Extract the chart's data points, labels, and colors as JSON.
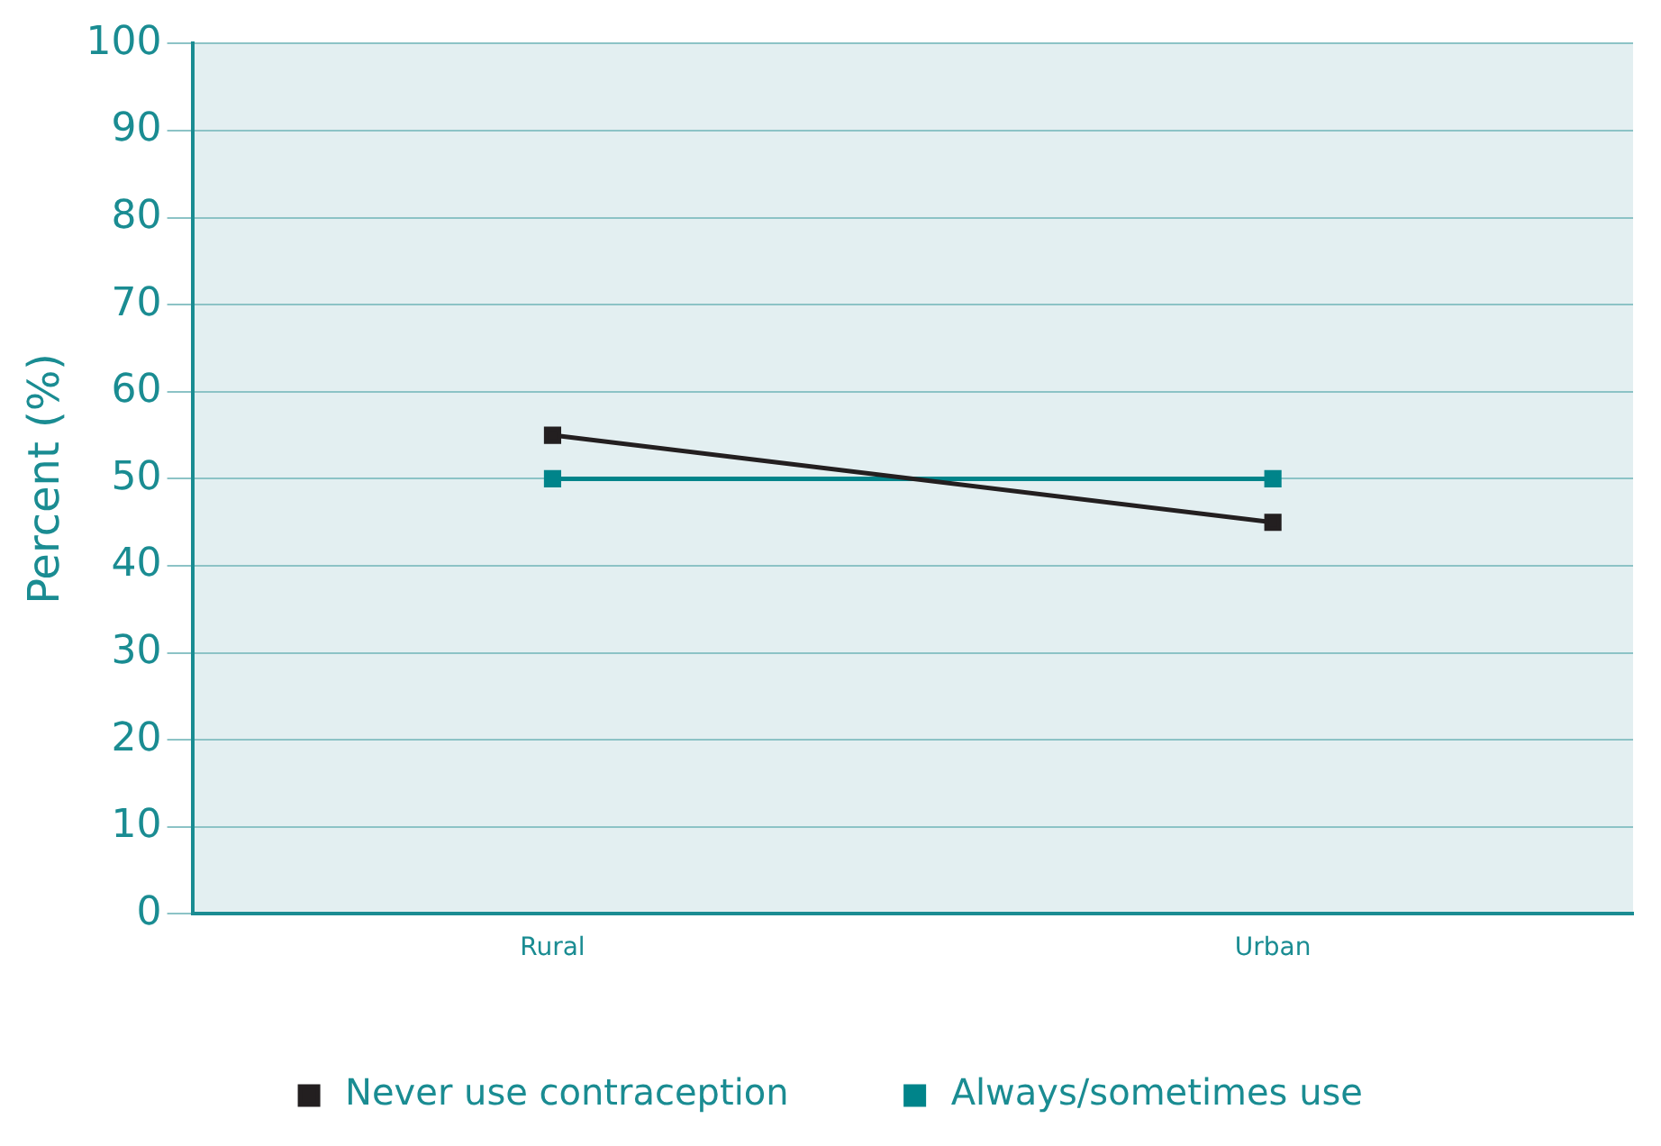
{
  "chart_data": {
    "type": "line",
    "ylabel": "Percent (%)",
    "categories": [
      "Rural",
      "Urban"
    ],
    "series": [
      {
        "name": "Never use contraception",
        "color": "#231f20",
        "values": [
          55,
          45
        ]
      },
      {
        "name": "Always/sometimes use",
        "color": "#00848a",
        "values": [
          50,
          50
        ]
      }
    ],
    "ylim": [
      0,
      100
    ],
    "yticks": [
      0,
      10,
      20,
      30,
      40,
      50,
      60,
      70,
      80,
      90,
      100
    ],
    "grid": "y",
    "legend": "bottom",
    "marker": "square",
    "line_style": "solid"
  }
}
